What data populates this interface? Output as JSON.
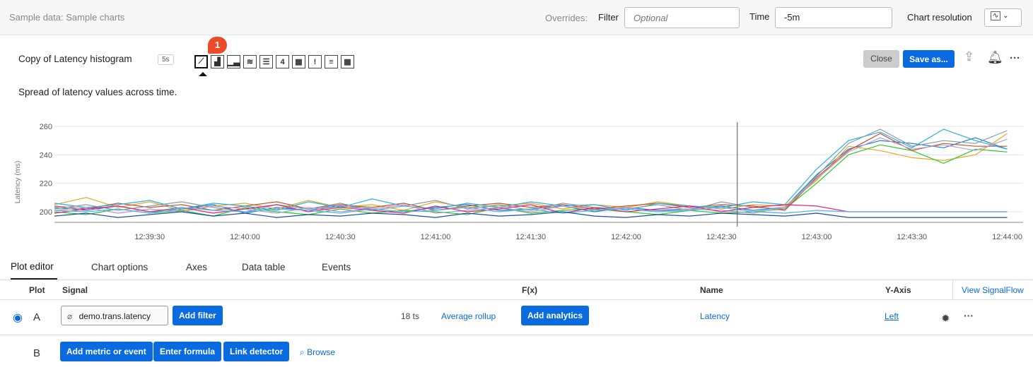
{
  "topbar": {
    "title": "Sample data: Sample charts",
    "overrides": "Overrides:",
    "filter_label": "Filter",
    "filter_placeholder": "Optional",
    "time_label": "Time",
    "time_value": "-5m",
    "resolution_label": "Chart resolution",
    "resolution_icon": "line-chart-icon"
  },
  "chart_header": {
    "title": "Copy of Latency histogram",
    "refresh_badge": "5s",
    "badge_count": "1",
    "single_value_icon_label": "4",
    "description": "Spread of latency values across time.",
    "close": "Close",
    "save_as": "Save as..."
  },
  "chart_types": [
    "line",
    "area",
    "column",
    "histogram",
    "list",
    "single-value",
    "heatmap",
    "event-feed",
    "text",
    "table"
  ],
  "tabs": [
    "Plot editor",
    "Chart options",
    "Axes",
    "Data table",
    "Events"
  ],
  "active_tab": "Plot editor",
  "table": {
    "headers": {
      "plot": "Plot",
      "signal": "Signal",
      "fx": "F(x)",
      "name": "Name",
      "yaxis": "Y-Axis",
      "signalflow": "View SignalFlow"
    },
    "row_a": {
      "letter": "A",
      "signal": "demo.trans.latency",
      "add_filter": "Add filter",
      "ts_count": "18 ts",
      "rollup": "Average rollup",
      "add_analytics": "Add analytics",
      "name": "Latency",
      "yaxis": "Left"
    },
    "row_b": {
      "letter": "B",
      "add_metric": "Add metric or event",
      "enter_formula": "Enter formula",
      "link_detector": "Link detector",
      "browse": "Browse"
    }
  },
  "chart_data": {
    "type": "line",
    "ylabel": "Latency (ms)",
    "ylim": [
      192,
      263
    ],
    "y_ticks": [
      "200",
      "220",
      "240",
      "260"
    ],
    "y_tick_values": [
      200,
      220,
      240,
      260
    ],
    "x_ticks": [
      "12:39:30",
      "12:40:00",
      "12:40:30",
      "12:41:00",
      "12:41:30",
      "12:42:00",
      "12:42:30",
      "12:43:00",
      "12:43:30",
      "12:44:00"
    ],
    "x_start": "12:39:00",
    "x_end": "12:44:05",
    "x_step_seconds": 10,
    "cursor_time": "12:42:35",
    "grid": true,
    "series": [
      {
        "color": "#1f77d0",
        "values": [
          203,
          201,
          204,
          200,
          202,
          205,
          199,
          203,
          201,
          204,
          202,
          200,
          203,
          205,
          201,
          202,
          204,
          200,
          203,
          201,
          202,
          204,
          201,
          203,
          226,
          244,
          250,
          248,
          245,
          252,
          244
        ]
      },
      {
        "color": "#e6a829",
        "values": [
          205,
          210,
          203,
          207,
          201,
          204,
          206,
          202,
          208,
          203,
          205,
          201,
          207,
          203,
          204,
          206,
          202,
          205,
          203,
          207,
          204,
          202,
          205,
          204,
          222,
          246,
          243,
          238,
          236,
          240,
          255
        ]
      },
      {
        "color": "#2ec52e",
        "values": [
          200,
          198,
          202,
          199,
          201,
          197,
          203,
          200,
          198,
          202,
          199,
          201,
          200,
          198,
          203,
          199,
          201,
          202,
          200,
          198,
          201,
          199,
          200,
          202,
          220,
          240,
          247,
          243,
          234,
          244,
          242
        ]
      },
      {
        "color": "#c0552a",
        "values": [
          204,
          202,
          206,
          203,
          205,
          201,
          204,
          207,
          202,
          205,
          203,
          206,
          201,
          204,
          206,
          203,
          205,
          202,
          204,
          206,
          203,
          205,
          204,
          201,
          224,
          243,
          255,
          243,
          248,
          246,
          246
        ]
      },
      {
        "color": "#29aee6",
        "values": [
          206,
          203,
          205,
          208,
          202,
          206,
          204,
          201,
          207,
          203,
          209,
          204,
          202,
          206,
          203,
          207,
          204,
          205,
          201,
          206,
          204,
          203,
          207,
          205,
          230,
          250,
          256,
          245,
          258,
          250,
          244
        ]
      },
      {
        "color": "#8a9aa5",
        "values": [
          202,
          205,
          201,
          204,
          207,
          203,
          200,
          205,
          202,
          206,
          201,
          204,
          208,
          202,
          205,
          201,
          206,
          203,
          202,
          205,
          201,
          207,
          203,
          202,
          225,
          248,
          258,
          246,
          250,
          248,
          257
        ]
      },
      {
        "color": "#b59ccc",
        "values": [
          201,
          203,
          199,
          202,
          200,
          204,
          202,
          199,
          203,
          200,
          202,
          205,
          199,
          201,
          203,
          200,
          204,
          201,
          203,
          200,
          202,
          201,
          199,
          203,
          223,
          242,
          252,
          244,
          247,
          243,
          251
        ]
      },
      {
        "color": "#e0287d",
        "values": [
          199,
          202,
          204,
          200,
          203,
          199,
          202,
          205,
          200,
          203,
          201,
          199,
          204,
          200,
          202,
          205,
          199,
          203,
          200,
          202,
          204,
          200,
          203,
          205,
          204,
          200,
          200,
          200,
          200,
          200,
          200
        ]
      },
      {
        "color": "#5ab4e8",
        "values": [
          201,
          200,
          202,
          199,
          203,
          201,
          200,
          202,
          201,
          199,
          202,
          200,
          201,
          203,
          200,
          202,
          199,
          201,
          202,
          200,
          201,
          203,
          200,
          199,
          201,
          200,
          200,
          200,
          200,
          200,
          200
        ]
      },
      {
        "color": "#1a4fa0",
        "values": [
          197,
          199,
          196,
          198,
          200,
          197,
          199,
          196,
          198,
          197,
          199,
          198,
          196,
          199,
          197,
          198,
          200,
          197,
          196,
          198,
          197,
          199,
          198,
          197,
          199,
          196,
          196,
          196,
          196,
          196,
          196
        ]
      }
    ]
  }
}
